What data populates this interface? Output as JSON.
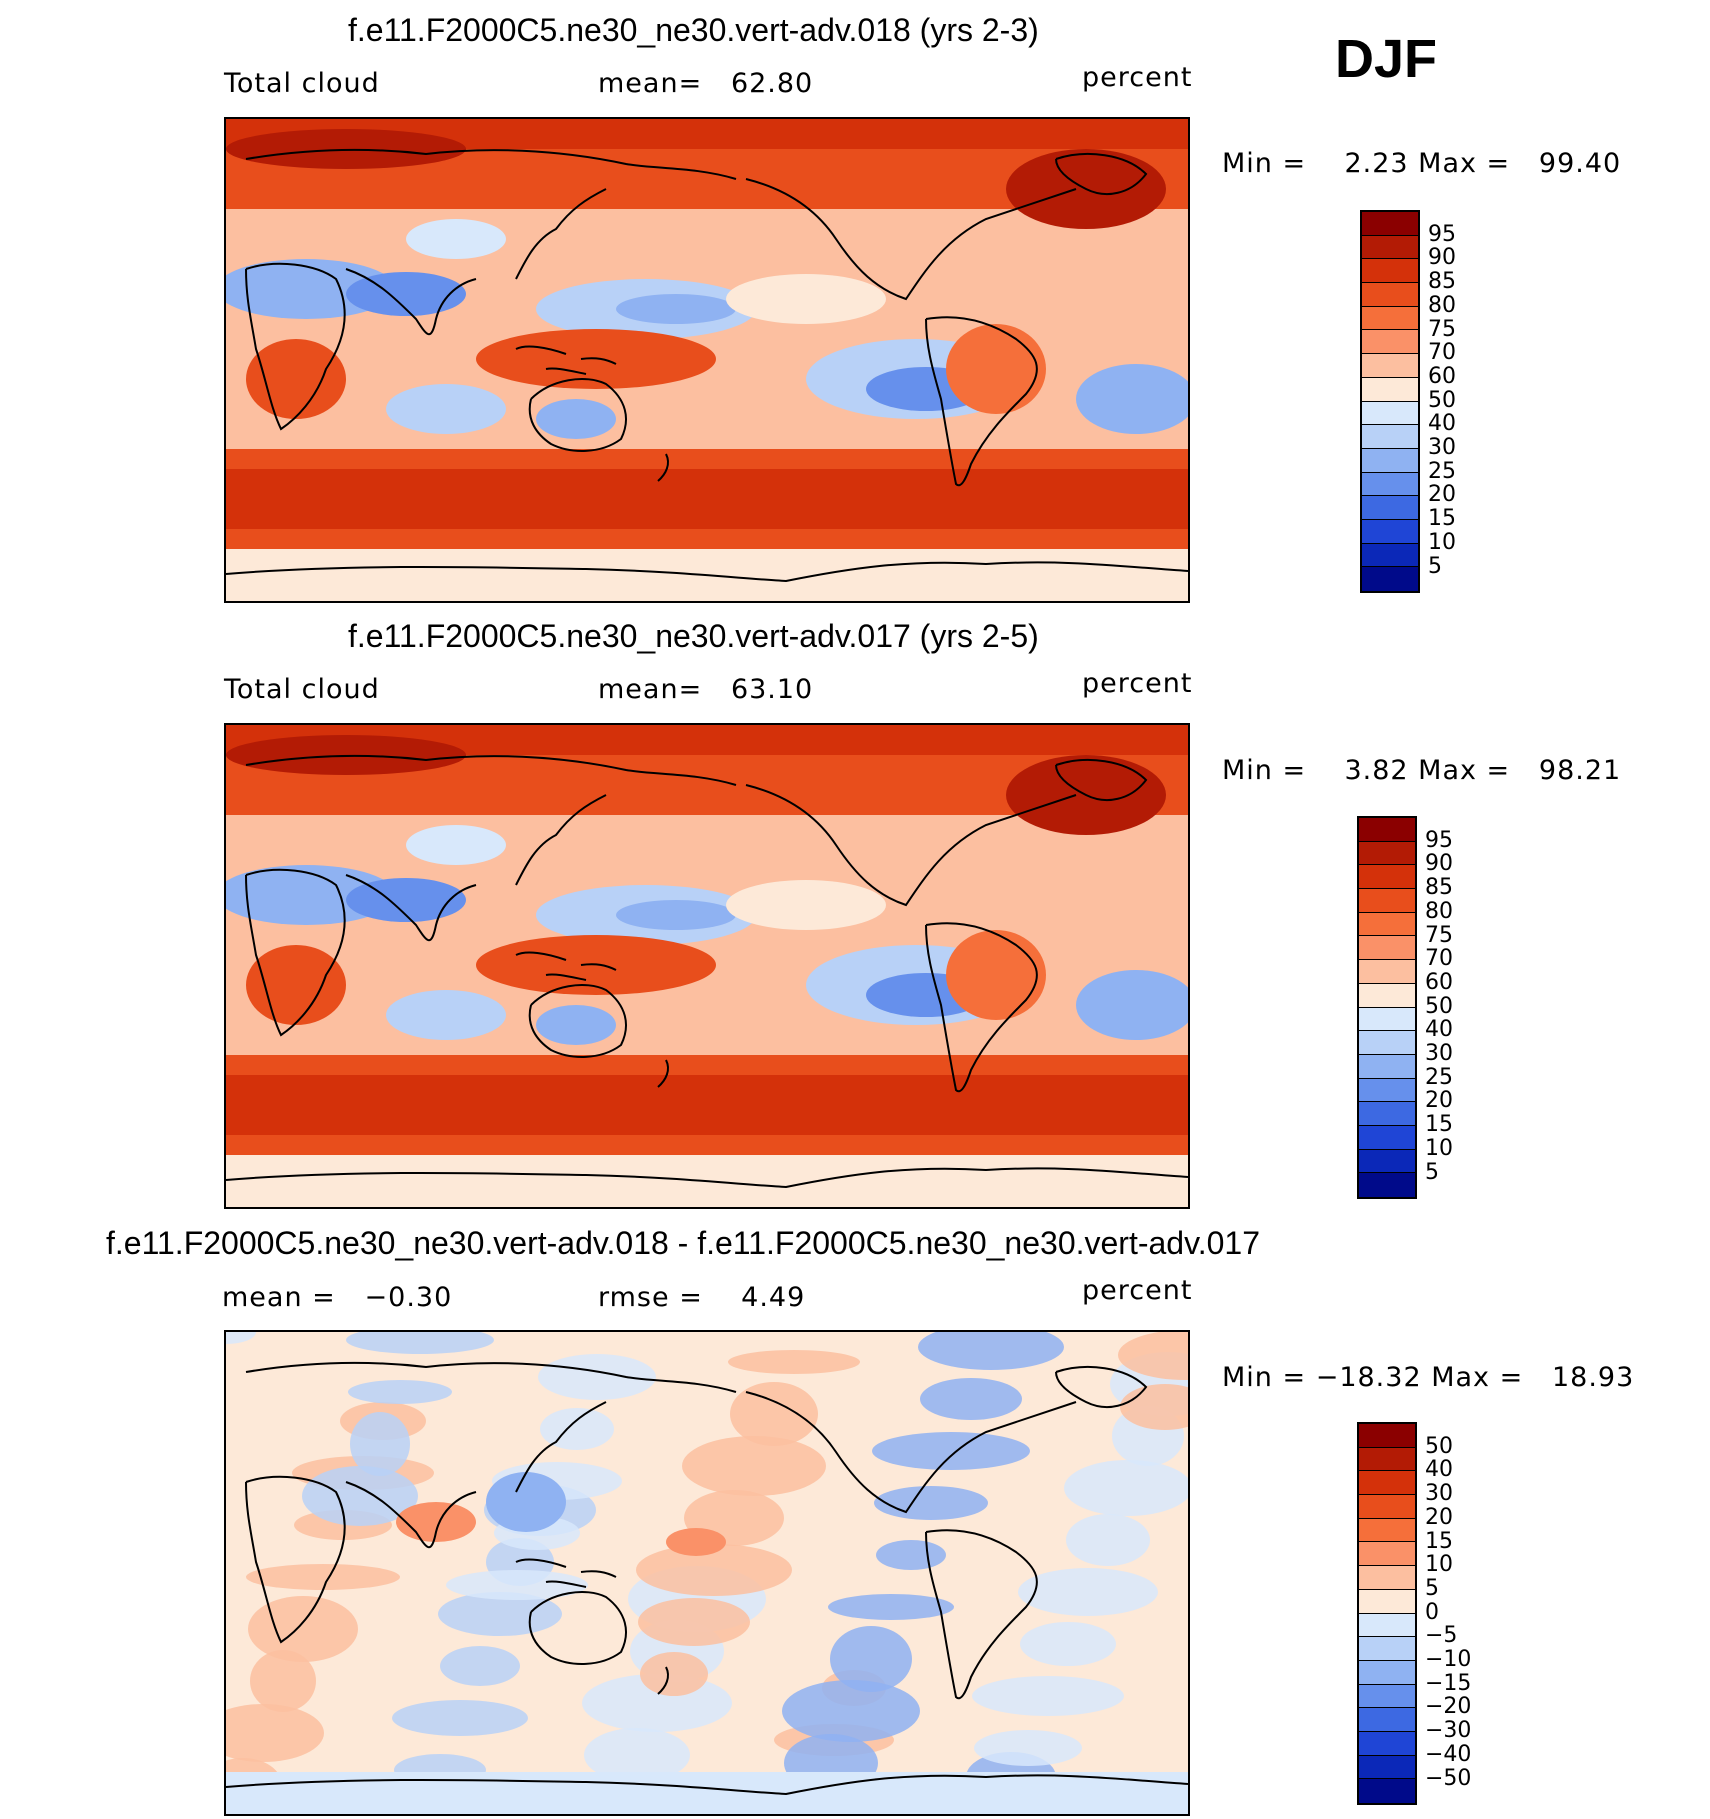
{
  "season": "DJF",
  "panels": [
    {
      "title": "f.e11.F2000C5.ne30_ne30.vert-adv.018 (yrs 2-3)",
      "left_label": "Total cloud",
      "center_label": "mean=   62.80",
      "right_label": "percent",
      "minmax": "Min =    2.23 Max =   99.40",
      "colorbar_ticks": [
        "95",
        "90",
        "85",
        "80",
        "75",
        "70",
        "60",
        "50",
        "40",
        "30",
        "25",
        "20",
        "15",
        "10",
        "5"
      ]
    },
    {
      "title": "f.e11.F2000C5.ne30_ne30.vert-adv.017 (yrs 2-5)",
      "left_label": "Total cloud",
      "center_label": "mean=   63.10",
      "right_label": "percent",
      "minmax": "Min =    3.82 Max =   98.21",
      "colorbar_ticks": [
        "95",
        "90",
        "85",
        "80",
        "75",
        "70",
        "60",
        "50",
        "40",
        "30",
        "25",
        "20",
        "15",
        "10",
        "5"
      ]
    },
    {
      "title": "f.e11.F2000C5.ne30_ne30.vert-adv.018 - f.e11.F2000C5.ne30_ne30.vert-adv.017",
      "left_label": "mean =   −0.30",
      "center_label": "rmse =    4.49",
      "right_label": "percent",
      "minmax": "Min = −18.32 Max =   18.93",
      "colorbar_ticks": [
        "50",
        "40",
        "30",
        "20",
        "15",
        "10",
        "5",
        "0",
        "−5",
        "−10",
        "−15",
        "−20",
        "−30",
        "−40",
        "−50"
      ]
    }
  ],
  "colors": {
    "scale": [
      "#8b0000",
      "#b31b05",
      "#d4310a",
      "#e84e1c",
      "#f56f3a",
      "#fa9168",
      "#fcbfa0",
      "#fde9d8",
      "#d8e8fb",
      "#b8d1f7",
      "#8fb2f2",
      "#6690ec",
      "#3d69e2",
      "#1f45d6",
      "#0b28b8",
      "#000a8a"
    ]
  }
}
